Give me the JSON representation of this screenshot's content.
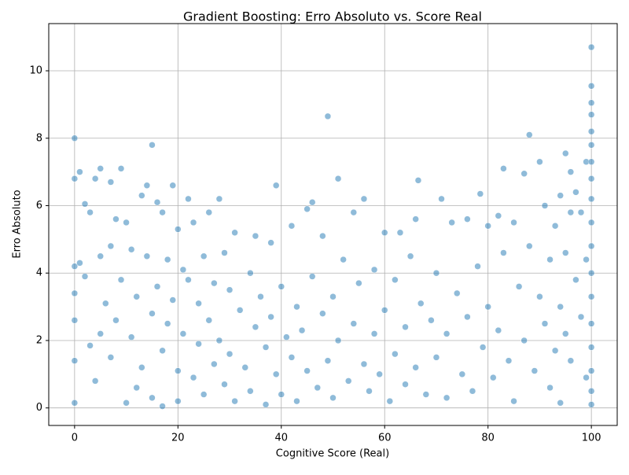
{
  "chart_data": {
    "type": "scatter",
    "title": "Gradient Boosting: Erro Absoluto vs. Score Real",
    "x_label": "Cognitive Score (Real)",
    "y_label": "Erro Absoluto",
    "color": "#1f77b4",
    "grid": true,
    "xlim": [
      -5,
      105
    ],
    "xticks": [
      0,
      20,
      40,
      60,
      80,
      100
    ],
    "ylim": [
      -0.52,
      11.4
    ],
    "yticks": [
      0,
      2,
      4,
      6,
      8,
      10
    ],
    "x": [
      0,
      0,
      0,
      0,
      0,
      0,
      0,
      1,
      1,
      2,
      2,
      3,
      3,
      4,
      4,
      5,
      5,
      5,
      6,
      7,
      7,
      7,
      8,
      8,
      9,
      9,
      10,
      10,
      11,
      11,
      12,
      12,
      13,
      13,
      14,
      14,
      15,
      15,
      15,
      16,
      16,
      17,
      17,
      17,
      18,
      18,
      19,
      19,
      20,
      20,
      20,
      21,
      21,
      22,
      22,
      23,
      23,
      24,
      24,
      25,
      25,
      26,
      26,
      27,
      27,
      28,
      28,
      29,
      29,
      30,
      30,
      31,
      31,
      32,
      33,
      34,
      34,
      35,
      35,
      36,
      37,
      37,
      38,
      38,
      39,
      39,
      40,
      40,
      41,
      42,
      42,
      43,
      43,
      44,
      45,
      45,
      46,
      46,
      47,
      48,
      48,
      49,
      49,
      50,
      50,
      51,
      51,
      52,
      53,
      54,
      54,
      55,
      56,
      56,
      57,
      58,
      58,
      59,
      60,
      60,
      61,
      62,
      62,
      63,
      64,
      64,
      65,
      66,
      66,
      66.5,
      67,
      68,
      69,
      70,
      70,
      71,
      72,
      72,
      73,
      74,
      75,
      76,
      76,
      77,
      78,
      78.5,
      79,
      80,
      80,
      81,
      82,
      82,
      83,
      83,
      84,
      85,
      85,
      86,
      87,
      87,
      88,
      88,
      89,
      90,
      90,
      91,
      91,
      92,
      92,
      93,
      93,
      94,
      94,
      94,
      95,
      95,
      95,
      96,
      96,
      96,
      97,
      97,
      98,
      98,
      99,
      99,
      99,
      100,
      100,
      100,
      100,
      100,
      100,
      100,
      100,
      100,
      100,
      100,
      100,
      100,
      100,
      100,
      100,
      100,
      100
    ],
    "y": [
      8.0,
      6.8,
      4.2,
      3.4,
      2.6,
      1.4,
      0.15,
      7.0,
      4.3,
      6.05,
      3.9,
      5.8,
      1.85,
      6.8,
      0.8,
      7.1,
      4.5,
      2.2,
      3.1,
      6.7,
      4.8,
      1.5,
      5.6,
      2.6,
      7.1,
      3.8,
      5.5,
      0.15,
      4.7,
      2.1,
      3.3,
      0.6,
      6.3,
      1.2,
      6.6,
      4.5,
      7.8,
      2.8,
      0.3,
      6.1,
      3.6,
      5.8,
      1.7,
      0.05,
      4.4,
      2.5,
      6.6,
      3.2,
      5.3,
      1.1,
      0.2,
      4.1,
      2.2,
      6.2,
      3.8,
      5.5,
      0.9,
      3.1,
      1.9,
      4.5,
      0.4,
      5.8,
      2.6,
      3.7,
      1.3,
      6.2,
      2.0,
      4.6,
      0.7,
      3.5,
      1.6,
      5.2,
      0.2,
      2.9,
      1.2,
      4.0,
      0.5,
      5.1,
      2.4,
      3.3,
      1.8,
      0.1,
      4.9,
      2.7,
      6.6,
      1.0,
      3.6,
      0.4,
      2.1,
      5.4,
      1.5,
      3.0,
      0.2,
      2.3,
      5.9,
      1.1,
      6.1,
      3.9,
      0.6,
      2.8,
      5.1,
      8.65,
      1.4,
      3.3,
      0.3,
      6.8,
      2.0,
      4.4,
      0.8,
      5.8,
      2.5,
      3.7,
      6.2,
      1.3,
      0.5,
      4.1,
      2.2,
      1.0,
      5.2,
      2.9,
      0.2,
      3.8,
      1.6,
      5.2,
      2.4,
      0.7,
      4.5,
      5.6,
      1.2,
      6.75,
      3.1,
      0.4,
      2.6,
      4.0,
      1.5,
      6.2,
      2.2,
      0.3,
      5.5,
      3.4,
      1.0,
      5.6,
      2.7,
      0.5,
      4.2,
      6.35,
      1.8,
      5.4,
      3.0,
      0.9,
      5.7,
      2.3,
      7.1,
      4.6,
      1.4,
      5.5,
      0.2,
      3.6,
      6.95,
      2.0,
      8.1,
      4.8,
      1.1,
      7.3,
      3.3,
      6.0,
      2.5,
      4.4,
      0.6,
      5.4,
      1.7,
      6.3,
      3.0,
      0.15,
      7.55,
      4.6,
      2.2,
      7.0,
      5.8,
      1.4,
      6.4,
      3.8,
      5.8,
      2.7,
      7.3,
      4.4,
      0.9,
      10.7,
      9.55,
      9.05,
      8.7,
      8.2,
      7.8,
      7.3,
      6.8,
      6.2,
      5.5,
      4.8,
      4.0,
      3.3,
      2.5,
      1.8,
      1.1,
      0.5,
      0.1
    ]
  }
}
